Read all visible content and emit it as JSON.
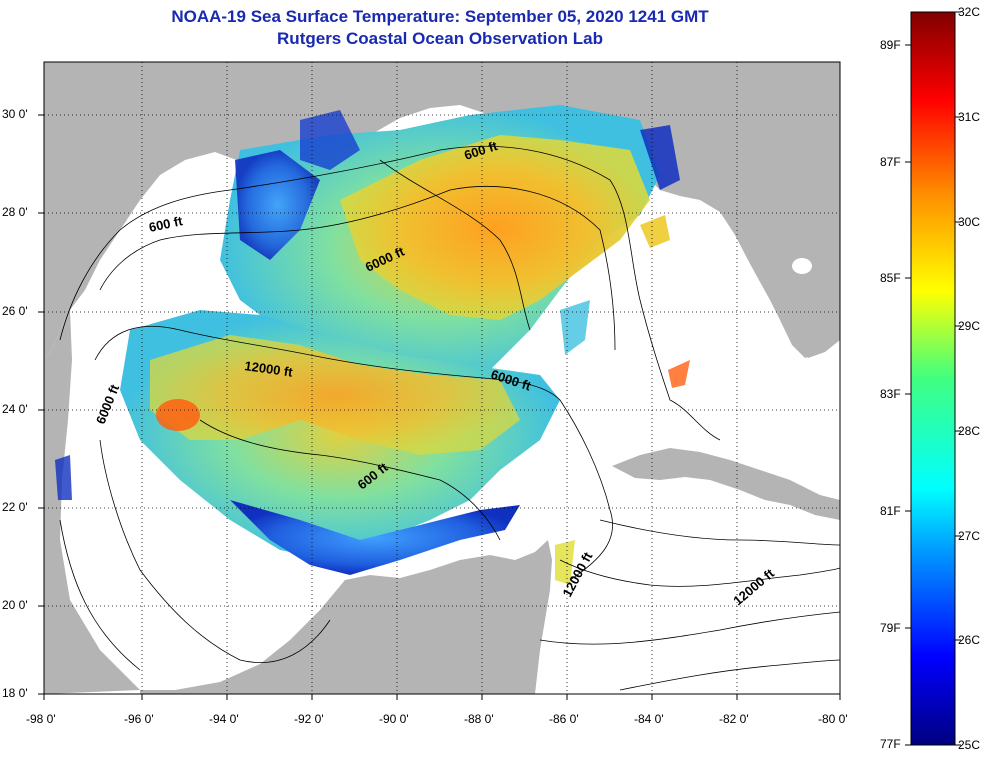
{
  "title": {
    "line1": "NOAA-19 Sea Surface Temperature:  September 05, 2020 1241 GMT",
    "line2": "Rutgers Coastal Ocean Observation Lab"
  },
  "axes": {
    "latitude_labels": [
      "30 0'",
      "28 0'",
      "26 0'",
      "24 0'",
      "22 0'",
      "20 0'",
      "18 0'"
    ],
    "longitude_labels": [
      "-98 0'",
      "-96 0'",
      "-94 0'",
      "-92 0'",
      "-90 0'",
      "-88 0'",
      "-86 0'",
      "-84 0'",
      "-82 0'",
      "-80 0'"
    ],
    "lat_range": [
      18,
      31
    ],
    "lon_range": [
      -98,
      -80
    ]
  },
  "contours": {
    "labels": [
      "600 ft",
      "600 ft",
      "600 ft",
      "6000 ft",
      "6000 ft",
      "6000 ft",
      "12000 ft",
      "12000 ft",
      "12000 ft"
    ]
  },
  "colorbar": {
    "fahrenheit_labels": [
      "89F",
      "87F",
      "85F",
      "83F",
      "81F",
      "79F",
      "77F"
    ],
    "celsius_labels": [
      "32C",
      "31C",
      "30C",
      "29C",
      "28C",
      "27C",
      "26C",
      "25C"
    ],
    "range_c": [
      25,
      32
    ]
  },
  "colors": {
    "land": "#b4b4b4",
    "title": "#1a2ab0"
  }
}
